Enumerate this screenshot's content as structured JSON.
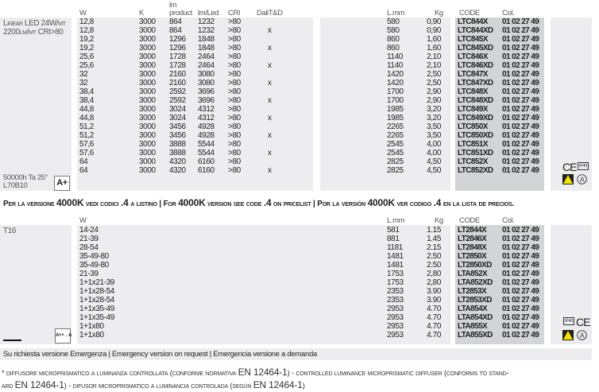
{
  "table1": {
    "label_line1": "Linear LED 24W/mt",
    "label_line2": "2200lm/mt CRI>80",
    "lifetime_line1": "50000h Ta 25°",
    "lifetime_line2": "L70B10",
    "energy_class": "A+",
    "headers": {
      "w": "W",
      "k": "K",
      "lm_top": "lm",
      "lm_product": "product",
      "lm_led": "lm/Led",
      "cri": "CRI",
      "dali": "DaliT&D",
      "lmm": "L.mm",
      "kg": "Kg",
      "code": "CODE",
      "col": "Col."
    },
    "rows": [
      [
        "12,8",
        "3000",
        "864",
        "1232",
        ">80",
        "",
        "580",
        "0,90",
        "LTC844X",
        "01 02 27 49"
      ],
      [
        "12,8",
        "3000",
        "864",
        "1232",
        ">80",
        "x",
        "580",
        "0,90",
        "LTC844XD",
        "01 02 27 49"
      ],
      [
        "19,2",
        "3000",
        "1296",
        "1848",
        ">80",
        "",
        "860",
        "1,60",
        "LTC845X",
        "01 02 27 49"
      ],
      [
        "19,2",
        "3000",
        "1296",
        "1848",
        ">80",
        "x",
        "860",
        "1,60",
        "LTC845XD",
        "01 02 27 49"
      ],
      [
        "25,6",
        "3000",
        "1728",
        "2464",
        ">80",
        "",
        "1140",
        "2,10",
        "LTC846X",
        "01 02 27 49"
      ],
      [
        "25,6",
        "3000",
        "1728",
        "2464",
        ">80",
        "x",
        "1140",
        "2,10",
        "LTC846XD",
        "01 02 27 49"
      ],
      [
        "32",
        "3000",
        "2160",
        "3080",
        ">80",
        "",
        "1420",
        "2,50",
        "LTC847X",
        "01 02 27 49"
      ],
      [
        "32",
        "3000",
        "2160",
        "3080",
        ">80",
        "x",
        "1420",
        "2,50",
        "LTC847XD",
        "01 02 27 49"
      ],
      [
        "38,4",
        "3000",
        "2592",
        "3696",
        ">80",
        "",
        "1700",
        "2,90",
        "LTC848X",
        "01 02 27 49"
      ],
      [
        "38,4",
        "3000",
        "2592",
        "3696",
        ">80",
        "x",
        "1700",
        "2,90",
        "LTC848XD",
        "01 02 27 49"
      ],
      [
        "44,8",
        "3000",
        "3024",
        "4312",
        ">80",
        "",
        "1985",
        "3,20",
        "LTC849X",
        "01 02 27 49"
      ],
      [
        "44,8",
        "3000",
        "3024",
        "4312",
        ">80",
        "x",
        "1985",
        "3,20",
        "LTC849XD",
        "01 02 27 49"
      ],
      [
        "51,2",
        "3000",
        "3456",
        "4928",
        ">80",
        "",
        "2265",
        "3,50",
        "LTC850X",
        "01 02 27 49"
      ],
      [
        "51,2",
        "3000",
        "3456",
        "4928",
        ">80",
        "x",
        "2265",
        "3,50",
        "LTC850XD",
        "01 02 27 49"
      ],
      [
        "57,6",
        "3000",
        "3888",
        "5544",
        ">80",
        "",
        "2545",
        "4,00",
        "LTC851X",
        "01 02 27 49"
      ],
      [
        "57,6",
        "3000",
        "3888",
        "5544",
        ">80",
        "x",
        "2545",
        "4,00",
        "LTC851XD",
        "01 02 27 49"
      ],
      [
        "64",
        "3000",
        "4320",
        "6160",
        ">80",
        "",
        "2825",
        "4,50",
        "LTC852X",
        "01 02 27 49"
      ],
      [
        "64",
        "3000",
        "4320",
        "6160",
        ">80",
        "x",
        "2825",
        "4,50",
        "LTC852XD",
        "01 02 27 49"
      ]
    ],
    "cert_ce": "CE",
    "cert_ip": "IP40"
  },
  "notice_4000k": {
    "it_a": "Per la versione ",
    "it_b": "4000K",
    "it_c": " vedi codici ",
    "it_d": ".4",
    "it_e": " a listino  | ",
    "en_a": "For ",
    "en_b": "4000K",
    "en_c": " version  see code ",
    "en_d": ".4",
    "en_e": " on pricelist | ",
    "es_a": "Por la versión ",
    "es_b": "4000K",
    "es_c": " ver codigo ",
    "es_d": ".4",
    "es_e": " en la lista de precios."
  },
  "table2": {
    "label": "T16",
    "energy_class": "A++→A",
    "headers": {
      "w": "W",
      "lmm": "L.mm",
      "kg": "Kg",
      "code": "CODE",
      "col": "Col."
    },
    "rows": [
      [
        "14-24",
        "581",
        "1.15",
        "LT2844X",
        "01 02 27 49"
      ],
      [
        "21-39",
        "881",
        "1.45",
        "LT2846X",
        "01 02 27 49"
      ],
      [
        "28-54",
        "1181",
        "2.15",
        "LT2848X",
        "01 02 27 49"
      ],
      [
        "35-49-80",
        "1481",
        "2.50",
        "LT2850X",
        "01 02 27 49"
      ],
      [
        "35-49-80",
        "1481",
        "2.50",
        "LT2850XD",
        "01 02 27 49"
      ],
      [
        "21-39",
        "1753",
        "2,80",
        "LTA852X",
        "01 02 27 49"
      ],
      [
        "1+1x21-39",
        "1753",
        "2,80",
        "LTA852XD",
        "01 02 27 49"
      ],
      [
        "1+1x28-54",
        "2353",
        "3.90",
        "LT2853X",
        "01 02 27 49"
      ],
      [
        "1+1x28-54",
        "2353",
        "3.90",
        "LT2853XD",
        "01 02 27 49"
      ],
      [
        "1+1x35-49",
        "2953",
        "4.70",
        "LTA854X",
        "01 02 27 49"
      ],
      [
        "1+1x35-49",
        "2953",
        "4.70",
        "LTA854XD",
        "01 02 27 49"
      ],
      [
        "1+1x80",
        "2953",
        "4.70",
        "LTA855X",
        "01 02 27 49"
      ],
      [
        "1+1x80",
        "2953",
        "4.70",
        "LTA855XD",
        "01 02 27 49"
      ]
    ],
    "cert_ce": "CE",
    "cert_ip": "IP40"
  },
  "emergency_note": "Su richiesta versione Emergenza   | Emergency version on request | Emergencia versione a demanda",
  "footnote": {
    "a": "* diffusore microprismatico a luminanza controllata (conforme normativa ",
    "b": "EN 12464-1",
    "c": ") - controlled luminance microprismatic diffuser (conforms to stand-",
    "d": "ard  ",
    "e": "EN 12464-1",
    "f": ") - difusor microprismatico a luminancia controlada (según ",
    "g": "EN 12464-1",
    "h": ")"
  },
  "colors": {
    "panel": "#ededef",
    "code_panel": "#d3d4d6",
    "warning_yellow": "#f2e600"
  }
}
